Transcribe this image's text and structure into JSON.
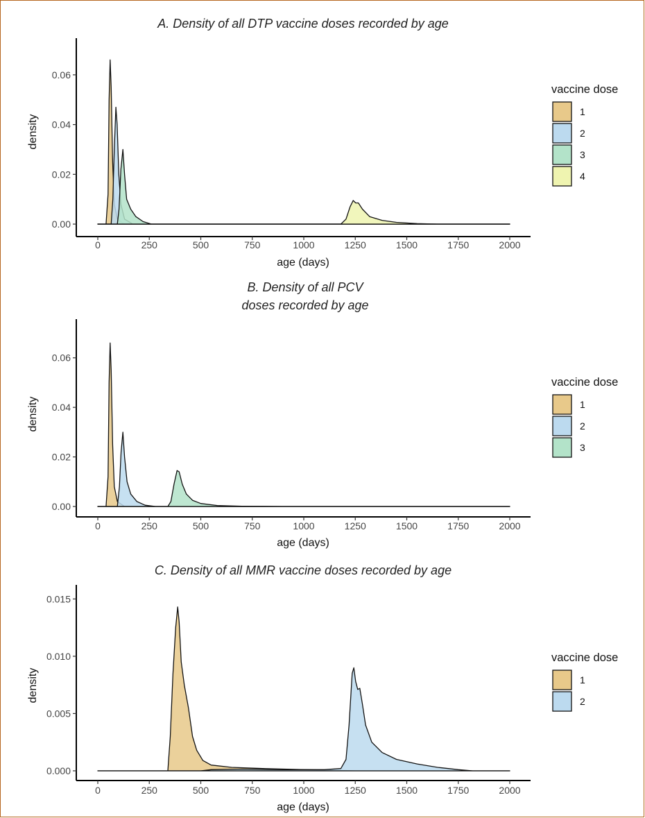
{
  "chart_data": [
    {
      "type": "area",
      "title": "A. Density of all DTP vaccine doses recorded by age",
      "xlabel": "age (days)",
      "ylabel": "density",
      "xlim": [
        0,
        2000
      ],
      "ylim": [
        0,
        0.07
      ],
      "x_ticks": [
        "0",
        "250",
        "500",
        "750",
        "1000",
        "1250",
        "1500",
        "1750",
        "2000"
      ],
      "y_ticks": [
        "0.00",
        "0.02",
        "0.04",
        "0.06"
      ],
      "y_tick_values": [
        0,
        0.02,
        0.04,
        0.06
      ],
      "legend": {
        "title": "vaccine dose",
        "position": "right"
      },
      "series": [
        {
          "name": "1",
          "color": "#e8c98a",
          "points": [
            [
              0,
              0
            ],
            [
              40,
              0
            ],
            [
              50,
              0.012
            ],
            [
              55,
              0.05
            ],
            [
              60,
              0.066
            ],
            [
              65,
              0.055
            ],
            [
              72,
              0.025
            ],
            [
              80,
              0.008
            ],
            [
              95,
              0.002
            ],
            [
              130,
              0
            ],
            [
              2000,
              0
            ]
          ]
        },
        {
          "name": "2",
          "color": "#bcdaef",
          "points": [
            [
              0,
              0
            ],
            [
              65,
              0
            ],
            [
              73,
              0.01
            ],
            [
              80,
              0.03
            ],
            [
              88,
              0.047
            ],
            [
              94,
              0.04
            ],
            [
              102,
              0.02
            ],
            [
              112,
              0.008
            ],
            [
              130,
              0.002
            ],
            [
              170,
              0
            ],
            [
              2000,
              0
            ]
          ]
        },
        {
          "name": "3",
          "color": "#b3e3c9",
          "points": [
            [
              0,
              0
            ],
            [
              95,
              0
            ],
            [
              103,
              0.006
            ],
            [
              112,
              0.022
            ],
            [
              122,
              0.03
            ],
            [
              130,
              0.02
            ],
            [
              140,
              0.01
            ],
            [
              160,
              0.006
            ],
            [
              185,
              0.003
            ],
            [
              220,
              0.001
            ],
            [
              260,
              0
            ],
            [
              2000,
              0
            ]
          ]
        },
        {
          "name": "4",
          "color": "#eff4b0",
          "points": [
            [
              0,
              0
            ],
            [
              1180,
              0
            ],
            [
              1205,
              0.002
            ],
            [
              1225,
              0.007
            ],
            [
              1240,
              0.0095
            ],
            [
              1252,
              0.0085
            ],
            [
              1265,
              0.0085
            ],
            [
              1285,
              0.006
            ],
            [
              1320,
              0.003
            ],
            [
              1380,
              0.0015
            ],
            [
              1450,
              0.0007
            ],
            [
              1550,
              0.0002
            ],
            [
              1650,
              0
            ],
            [
              2000,
              0
            ]
          ]
        }
      ]
    },
    {
      "type": "area",
      "title": "B. Density of all PCV\ndoses recorded by age",
      "xlabel": "age (days)",
      "ylabel": "density",
      "xlim": [
        0,
        2000
      ],
      "ylim": [
        0,
        0.07
      ],
      "x_ticks": [
        "0",
        "250",
        "500",
        "750",
        "1000",
        "1250",
        "1500",
        "1750",
        "2000"
      ],
      "y_ticks": [
        "0.00",
        "0.02",
        "0.04",
        "0.06"
      ],
      "y_tick_values": [
        0,
        0.02,
        0.04,
        0.06
      ],
      "legend": {
        "title": "vaccine dose",
        "position": "right"
      },
      "series": [
        {
          "name": "1",
          "color": "#e8c98a",
          "points": [
            [
              0,
              0
            ],
            [
              40,
              0
            ],
            [
              50,
              0.012
            ],
            [
              55,
              0.05
            ],
            [
              60,
              0.066
            ],
            [
              65,
              0.055
            ],
            [
              72,
              0.025
            ],
            [
              80,
              0.008
            ],
            [
              95,
              0.002
            ],
            [
              130,
              0
            ],
            [
              2000,
              0
            ]
          ]
        },
        {
          "name": "2",
          "color": "#bcdaef",
          "points": [
            [
              0,
              0
            ],
            [
              95,
              0
            ],
            [
              105,
              0.008
            ],
            [
              113,
              0.022
            ],
            [
              122,
              0.03
            ],
            [
              130,
              0.02
            ],
            [
              142,
              0.01
            ],
            [
              160,
              0.005
            ],
            [
              190,
              0.002
            ],
            [
              230,
              0.0005
            ],
            [
              280,
              0
            ],
            [
              2000,
              0
            ]
          ]
        },
        {
          "name": "3",
          "color": "#b3e3c9",
          "points": [
            [
              0,
              0
            ],
            [
              340,
              0
            ],
            [
              355,
              0.002
            ],
            [
              370,
              0.009
            ],
            [
              385,
              0.0145
            ],
            [
              395,
              0.014
            ],
            [
              410,
              0.009
            ],
            [
              430,
              0.005
            ],
            [
              460,
              0.0025
            ],
            [
              500,
              0.0012
            ],
            [
              580,
              0.0004
            ],
            [
              700,
              0.0001
            ],
            [
              900,
              0
            ],
            [
              2000,
              0
            ]
          ]
        }
      ]
    },
    {
      "type": "area",
      "title": "C. Density of all MMR vaccine doses recorded by age",
      "xlabel": "age (days)",
      "ylabel": "density",
      "xlim": [
        0,
        2000
      ],
      "ylim": [
        0,
        0.0155
      ],
      "x_ticks": [
        "0",
        "250",
        "500",
        "750",
        "1000",
        "1250",
        "1500",
        "1750",
        "2000"
      ],
      "y_ticks": [
        "0.000",
        "0.005",
        "0.010",
        "0.015"
      ],
      "y_tick_values": [
        0,
        0.005,
        0.01,
        0.015
      ],
      "legend": {
        "title": "vaccine dose",
        "position": "right"
      },
      "series": [
        {
          "name": "1",
          "color": "#e8c98a",
          "points": [
            [
              0,
              0
            ],
            [
              340,
              0
            ],
            [
              352,
              0.003
            ],
            [
              365,
              0.0085
            ],
            [
              378,
              0.0125
            ],
            [
              388,
              0.0143
            ],
            [
              395,
              0.013
            ],
            [
              405,
              0.0095
            ],
            [
              420,
              0.0075
            ],
            [
              440,
              0.0055
            ],
            [
              460,
              0.003
            ],
            [
              480,
              0.0018
            ],
            [
              510,
              0.0009
            ],
            [
              550,
              0.0005
            ],
            [
              650,
              0.0003
            ],
            [
              800,
              0.0002
            ],
            [
              1000,
              0.0001
            ],
            [
              1150,
              5e-05
            ],
            [
              1250,
              0
            ],
            [
              2000,
              0
            ]
          ]
        },
        {
          "name": "2",
          "color": "#bcdaef",
          "points": [
            [
              0,
              0
            ],
            [
              500,
              0
            ],
            [
              550,
              0.0001
            ],
            [
              700,
              0.00015
            ],
            [
              900,
              0.0001
            ],
            [
              1100,
              0.0001
            ],
            [
              1180,
              0.0002
            ],
            [
              1205,
              0.001
            ],
            [
              1220,
              0.004
            ],
            [
              1235,
              0.0085
            ],
            [
              1243,
              0.009
            ],
            [
              1252,
              0.0078
            ],
            [
              1262,
              0.0071
            ],
            [
              1272,
              0.0072
            ],
            [
              1285,
              0.0058
            ],
            [
              1300,
              0.004
            ],
            [
              1330,
              0.0025
            ],
            [
              1380,
              0.0016
            ],
            [
              1450,
              0.001
            ],
            [
              1550,
              0.0006
            ],
            [
              1650,
              0.0003
            ],
            [
              1750,
              0.0001
            ],
            [
              1820,
              0
            ],
            [
              2000,
              0
            ]
          ]
        }
      ]
    }
  ]
}
